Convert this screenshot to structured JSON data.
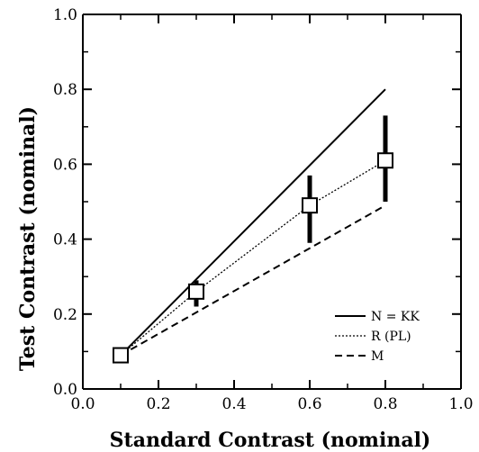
{
  "chart_data": {
    "type": "line",
    "title": "",
    "xlabel": "Standard Contrast (nominal)",
    "ylabel": "Test Contrast (nominal)",
    "xlim": [
      0.0,
      1.0
    ],
    "ylim": [
      0.0,
      1.0
    ],
    "xticks": [
      "0.0",
      "0.2",
      "0.4",
      "0.6",
      "0.8",
      "1.0"
    ],
    "yticks": [
      "0.0",
      "0.2",
      "0.4",
      "0.6",
      "0.8",
      "1.0"
    ],
    "grid": false,
    "legend_position": "bottom-right",
    "series": [
      {
        "name": "N = KK",
        "style": "solid",
        "x": [
          0.1,
          0.8
        ],
        "y": [
          0.09,
          0.8
        ]
      },
      {
        "name": "R (PL)",
        "style": "dotted",
        "x": [
          0.1,
          0.3,
          0.6,
          0.8
        ],
        "y": [
          0.09,
          0.26,
          0.49,
          0.61
        ]
      },
      {
        "name": "M",
        "style": "dashed",
        "x": [
          0.1,
          0.8
        ],
        "y": [
          0.09,
          0.49
        ]
      }
    ],
    "data_points": {
      "marker": "square",
      "x": [
        0.1,
        0.3,
        0.6,
        0.8
      ],
      "y": [
        0.09,
        0.26,
        0.49,
        0.61
      ],
      "err_low": [
        0.08,
        0.22,
        0.39,
        0.5
      ],
      "err_high": [
        0.1,
        0.29,
        0.57,
        0.73
      ]
    }
  }
}
